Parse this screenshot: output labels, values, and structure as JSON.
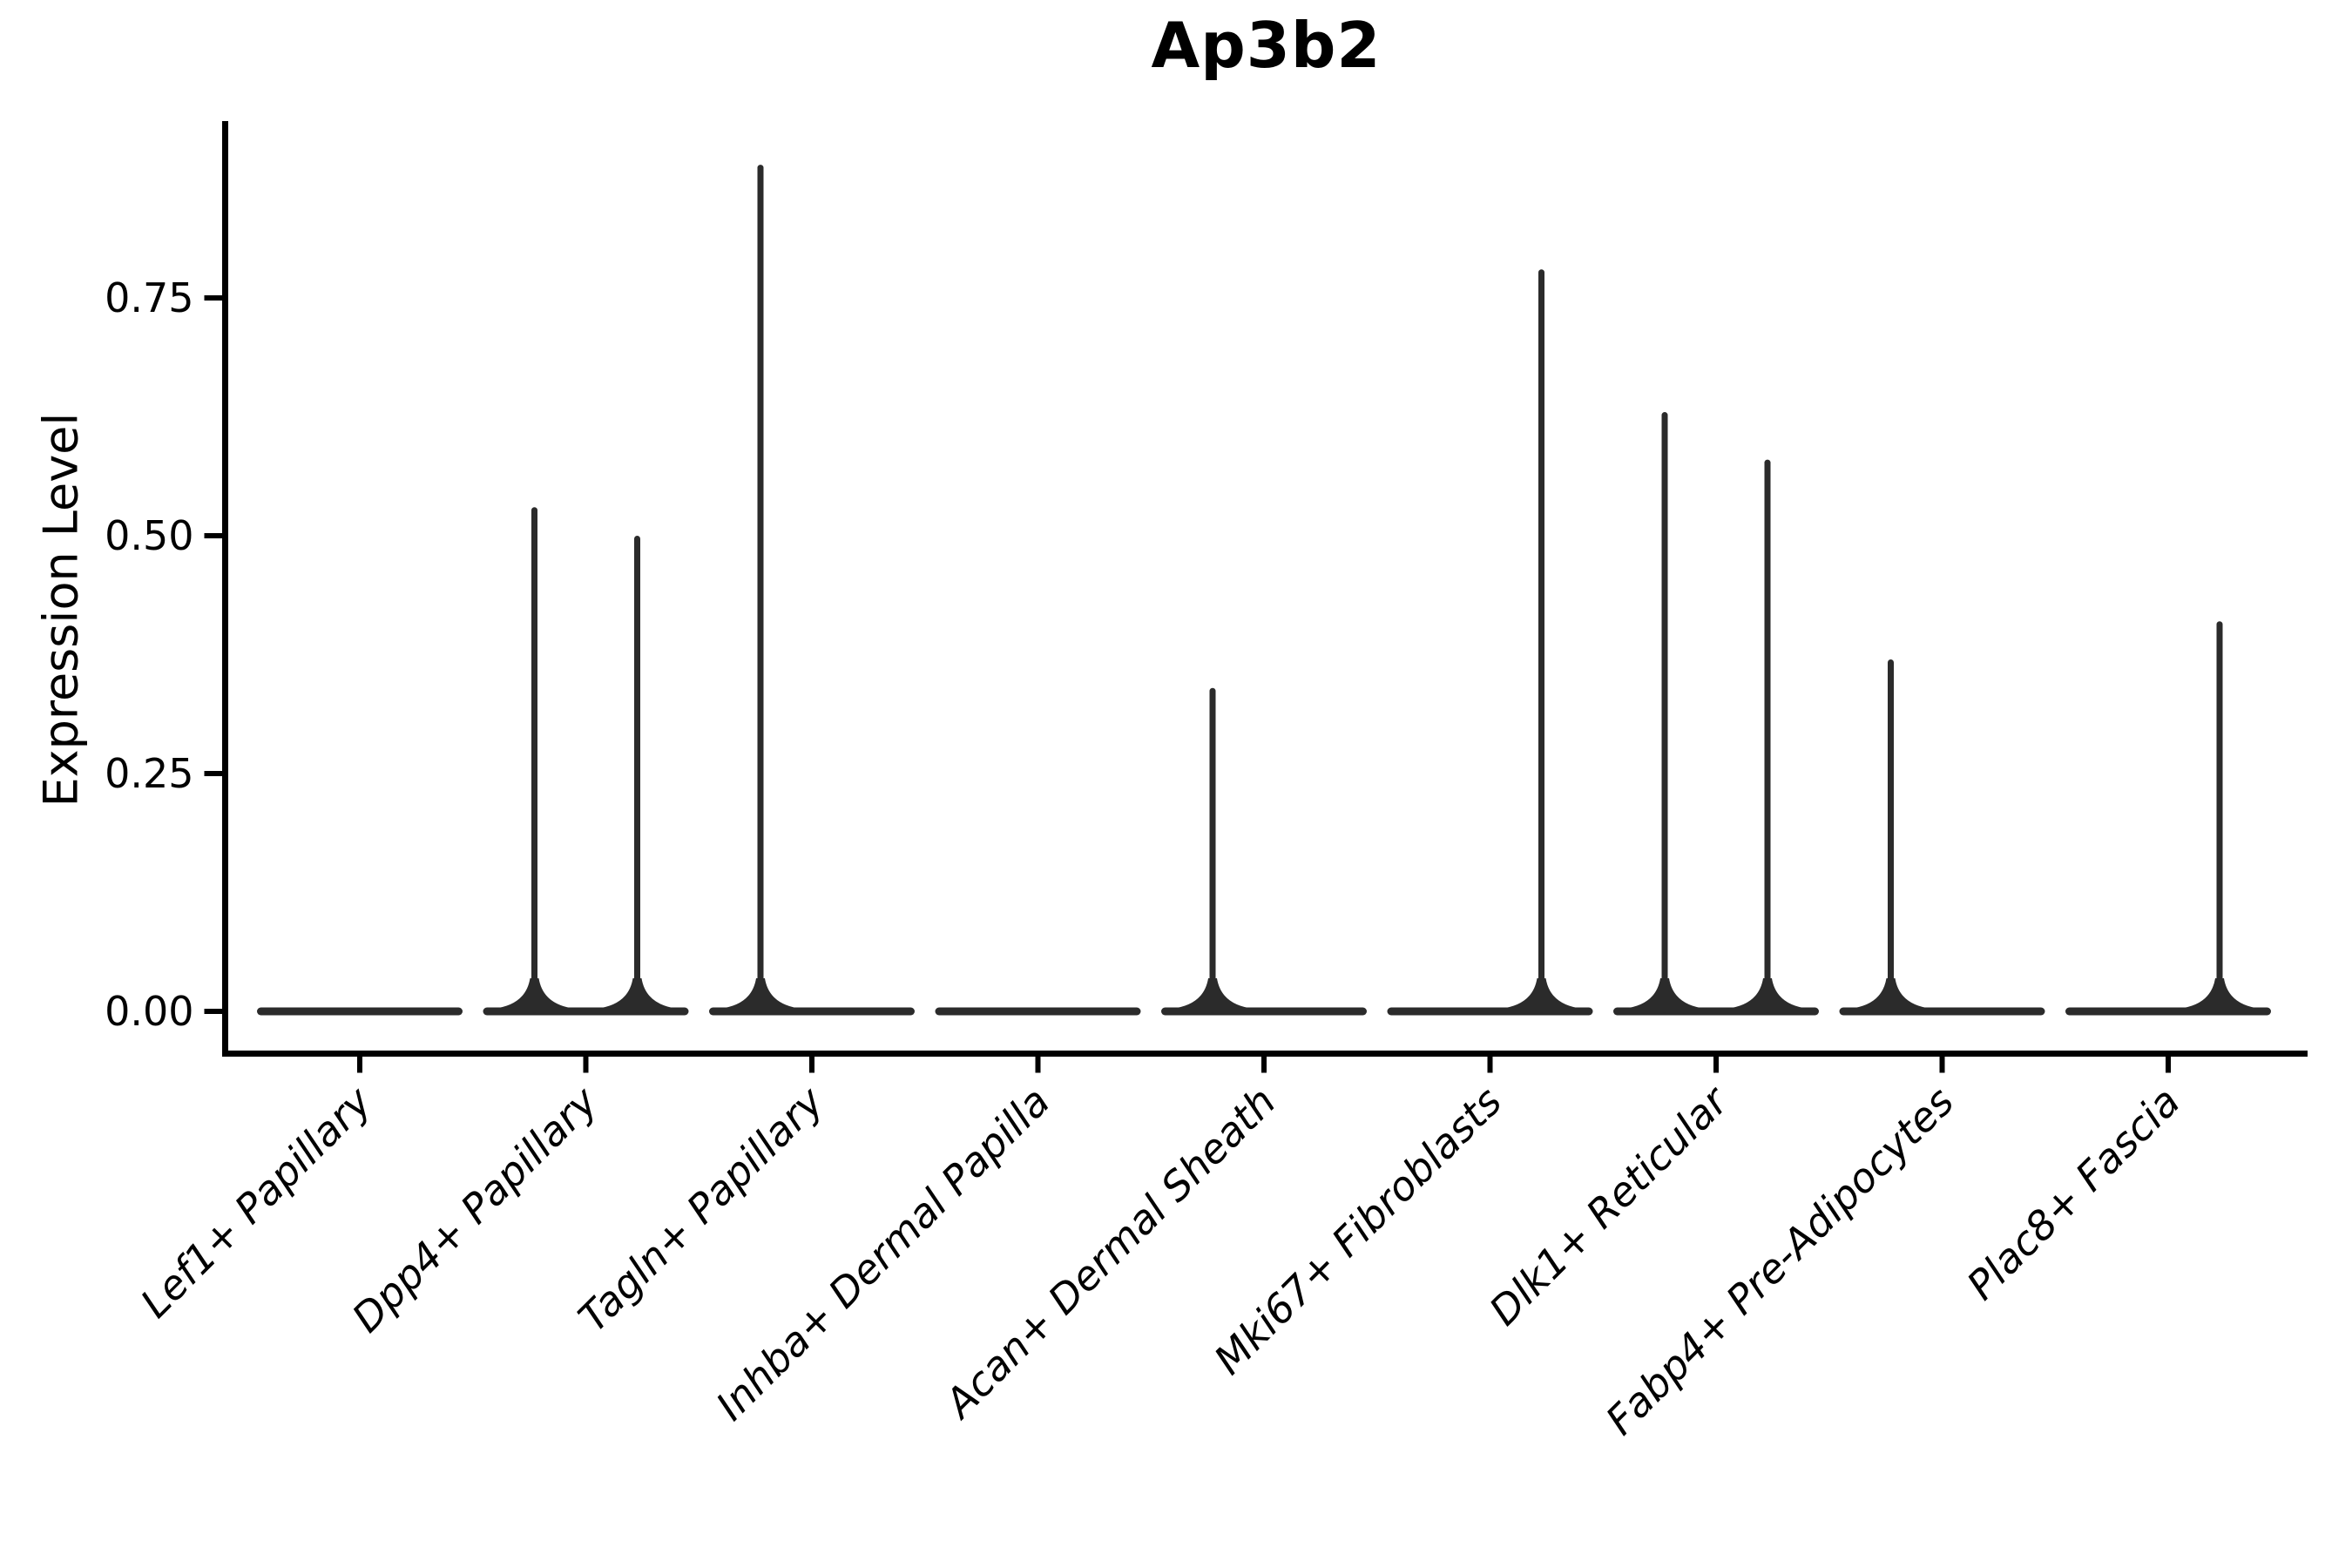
{
  "chart_data": {
    "type": "violin",
    "title": "Ap3b2",
    "xlabel": "",
    "ylabel": "Expression Level",
    "categories": [
      "Lef1+ Papillary",
      "Dpp4+ Papillary",
      "Tagln+ Papillary",
      "Inhba+ Dermal Papilla",
      "Acan+ Dermal Sheath",
      "Mki67+ Fibroblasts",
      "Dlk1+ Reticular",
      "Fabp4+ Pre-Adipocytes",
      "Plac8+ Fascia"
    ],
    "y_tick_labels": [
      "0.00",
      "0.25",
      "0.50",
      "0.75"
    ],
    "y_tick_values": [
      0,
      0.25,
      0.5,
      0.75
    ],
    "ylim": [
      0,
      0.936
    ],
    "grid": false,
    "legend": null,
    "violin_color": "#2b2b2b",
    "axis_color": "#000000",
    "series": [
      {
        "name": "left-subviolin",
        "position": "left",
        "max_expression": [
          0,
          0.53,
          0.89,
          0,
          0.34,
          0,
          0.63,
          0.37,
          0
        ]
      },
      {
        "name": "right-subviolin",
        "position": "right",
        "max_expression": [
          0,
          0.5,
          0,
          0,
          0,
          0.78,
          0.58,
          0,
          0.41
        ]
      }
    ],
    "baseline_note": "all violins have dense mass at expression 0"
  }
}
